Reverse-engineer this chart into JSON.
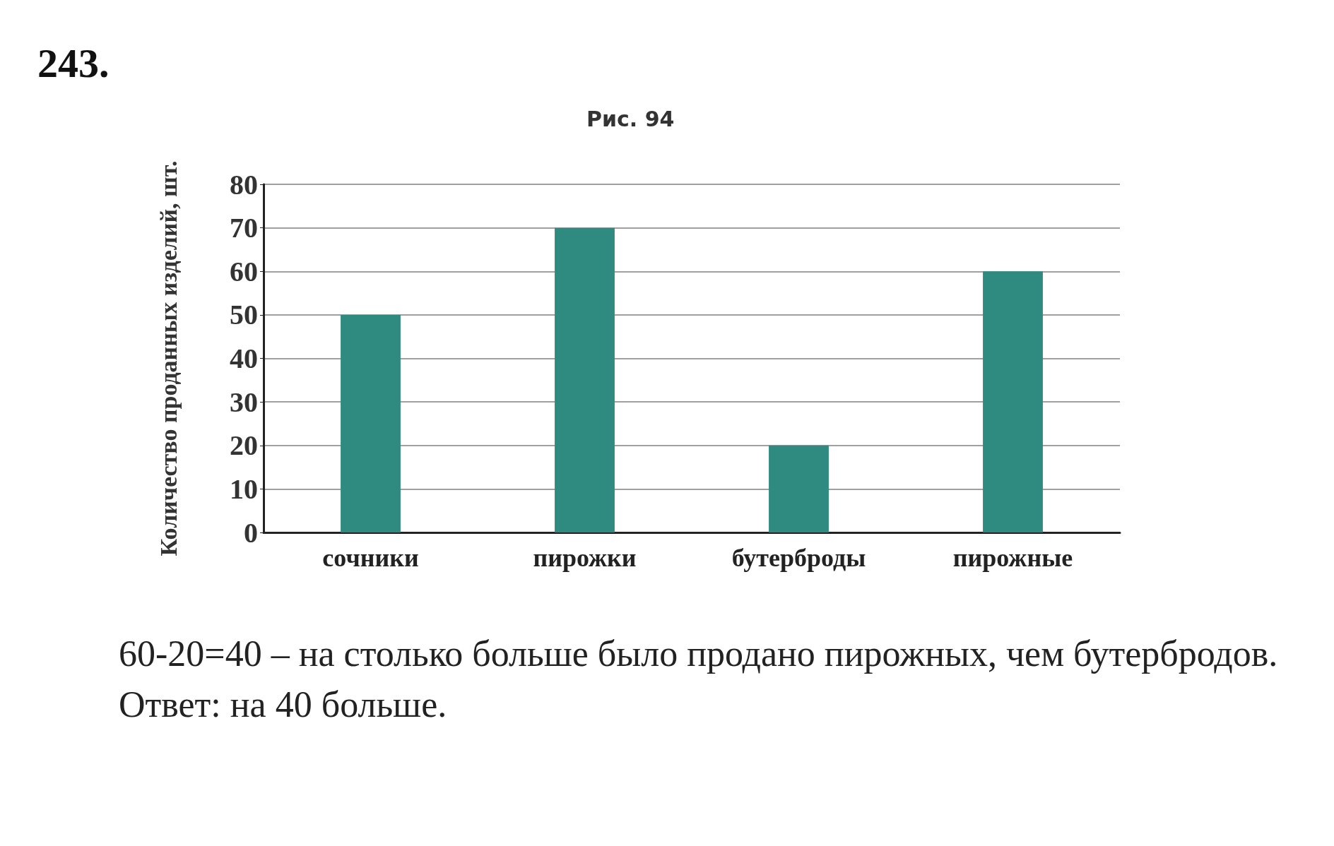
{
  "chart_data": {
    "type": "bar",
    "title": "243.",
    "subtitle": "Рис. 94",
    "ylabel": "Количество проданных изделий, шт.",
    "categories": [
      "сочники",
      "пирожки",
      "бутерброды",
      "пирожные"
    ],
    "values": [
      50,
      70,
      20,
      60
    ],
    "color": "#2f8a80",
    "ylim": [
      0,
      80
    ],
    "yticks": [
      0,
      10,
      20,
      30,
      40,
      50,
      60,
      70,
      80
    ],
    "grid": "y",
    "annotations": [
      "60-20=40 – на столько больше было продано пирожных, чем бутербродов.",
      "Ответ: на 40 больше."
    ]
  }
}
